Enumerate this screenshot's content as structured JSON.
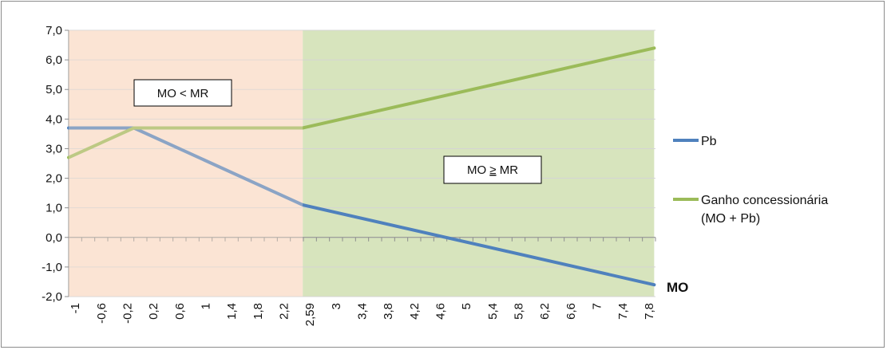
{
  "chart_data": {
    "type": "line",
    "xlabel": "MO",
    "ylabel": "",
    "ylim": [
      -2.0,
      7.0
    ],
    "y_ticks": [
      "7,0",
      "6,0",
      "5,0",
      "4,0",
      "3,0",
      "2,0",
      "1,0",
      "0,0",
      "-1,0",
      "-2,0"
    ],
    "x_tick_labels": [
      "-1",
      "-0,6",
      "-0,2",
      "0,2",
      "0,6",
      "1",
      "1,4",
      "1,8",
      "2,2",
      "2,59",
      "3",
      "3,4",
      "3,8",
      "4,2",
      "4,6",
      "5",
      "5,4",
      "5,8",
      "6,2",
      "6,6",
      "7",
      "7,4",
      "7,8"
    ],
    "grid": true,
    "legend_position": "right",
    "series": [
      {
        "name": "Pb",
        "color": "#4f81bd",
        "points": [
          [
            -1.0,
            3.7
          ],
          [
            0.0,
            3.7
          ],
          [
            2.59,
            1.1
          ],
          [
            7.98,
            -1.6
          ]
        ]
      },
      {
        "name": "Ganho concessionária (MO + Pb)",
        "color": "#9bbb59",
        "points": [
          [
            -1.0,
            2.7
          ],
          [
            0.0,
            3.7
          ],
          [
            2.59,
            3.7
          ],
          [
            7.98,
            6.4
          ]
        ]
      }
    ],
    "regions": [
      {
        "from": -1.0,
        "to": 2.59,
        "color": "#fbe4d5",
        "label": "MO < MR"
      },
      {
        "from": 2.59,
        "to": 7.98,
        "color": "#d7e4bd",
        "label_prefix": "MO ",
        "label_symbol": "≥",
        "label_suffix": " MR"
      }
    ]
  },
  "legend": {
    "items": [
      {
        "line1": "Pb",
        "line2": "",
        "color": "#4f81bd"
      },
      {
        "line1": "Ganho concessionária",
        "line2": "(MO + Pb)",
        "color": "#9bbb59"
      }
    ]
  }
}
